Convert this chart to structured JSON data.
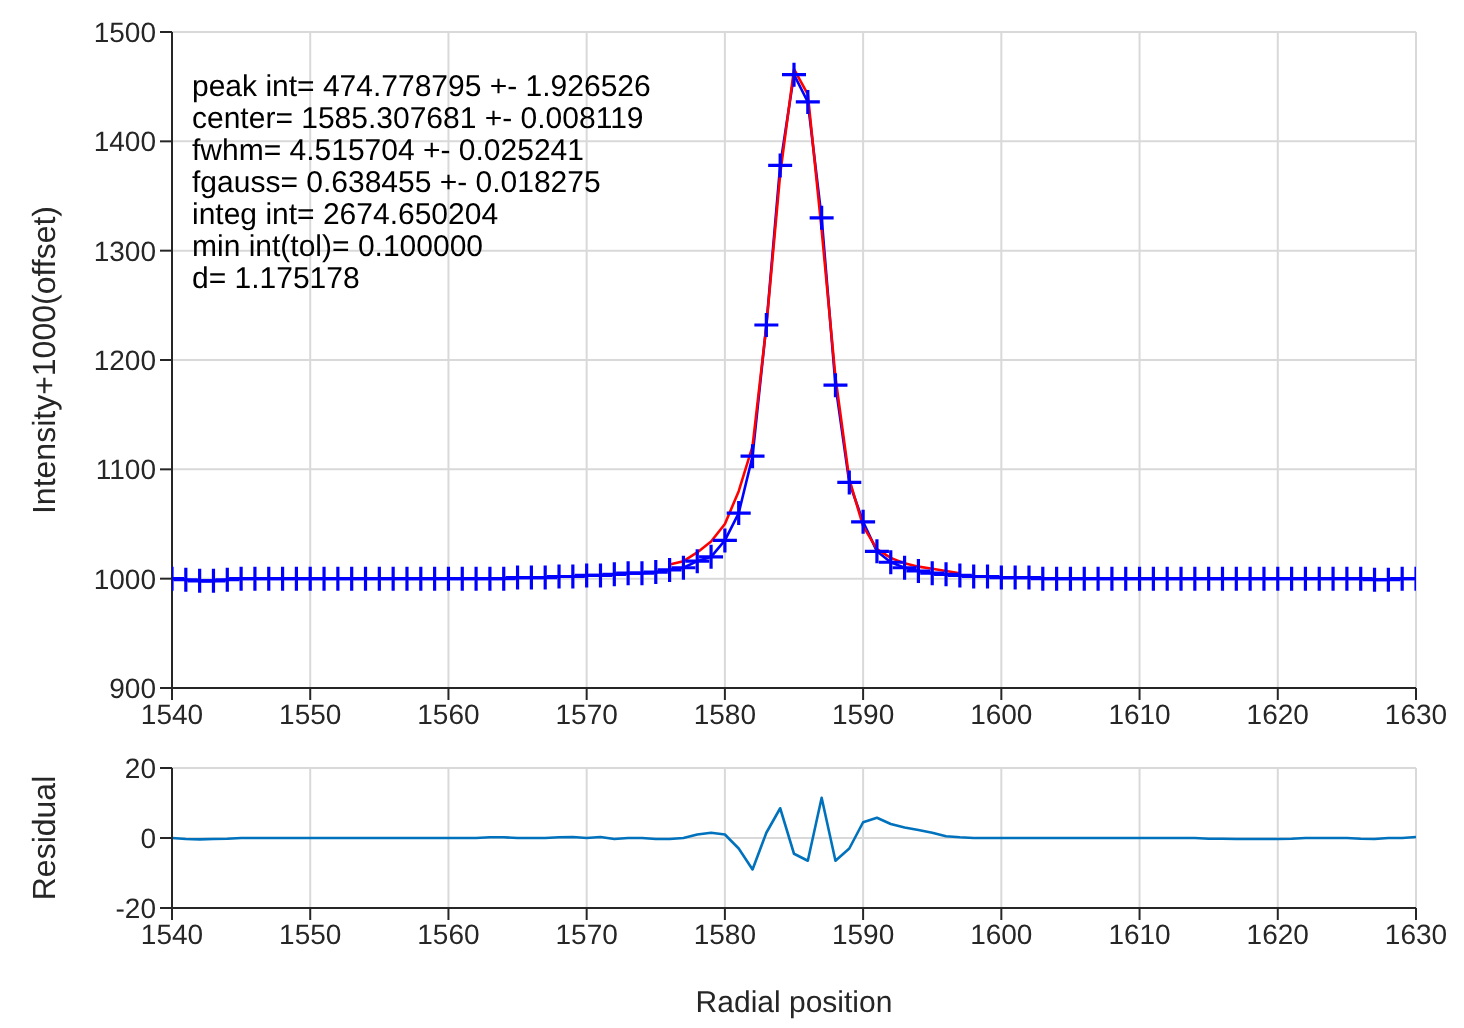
{
  "chart_data": [
    {
      "type": "line",
      "ylabel": "Intensity+1000(offset)",
      "xlim": [
        1540,
        1630
      ],
      "xticks": [
        1540,
        1550,
        1560,
        1570,
        1580,
        1590,
        1600,
        1610,
        1620,
        1630
      ],
      "ylim": [
        900,
        1500
      ],
      "yticks": [
        900,
        1000,
        1100,
        1200,
        1300,
        1400,
        1500
      ],
      "grid": true,
      "x": [
        1540,
        1541,
        1542,
        1543,
        1544,
        1545,
        1546,
        1547,
        1548,
        1549,
        1550,
        1551,
        1552,
        1553,
        1554,
        1555,
        1556,
        1557,
        1558,
        1559,
        1560,
        1561,
        1562,
        1563,
        1564,
        1565,
        1566,
        1567,
        1568,
        1569,
        1570,
        1571,
        1572,
        1573,
        1574,
        1575,
        1576,
        1577,
        1578,
        1579,
        1580,
        1581,
        1582,
        1583,
        1584,
        1585,
        1586,
        1587,
        1588,
        1589,
        1590,
        1591,
        1592,
        1593,
        1594,
        1595,
        1596,
        1597,
        1598,
        1599,
        1600,
        1601,
        1602,
        1603,
        1604,
        1605,
        1606,
        1607,
        1608,
        1609,
        1610,
        1611,
        1612,
        1613,
        1614,
        1615,
        1616,
        1617,
        1618,
        1619,
        1620,
        1621,
        1622,
        1623,
        1624,
        1625,
        1626,
        1627,
        1628,
        1629,
        1630
      ],
      "series": [
        {
          "color": "#0000ff",
          "marker": "cross",
          "values": [
            1000,
            999,
            998,
            998,
            999,
            1000,
            1000,
            1000,
            1000,
            1000,
            1000,
            1000,
            1000,
            1000,
            1000,
            1000,
            1000,
            1000,
            1000,
            1000,
            1000,
            1000,
            1000,
            1000,
            1000,
            1001,
            1001,
            1001,
            1002,
            1002,
            1003,
            1003,
            1004,
            1005,
            1005,
            1006,
            1008,
            1010,
            1016,
            1020,
            1035,
            1060,
            1112,
            1232,
            1378,
            1461,
            1436,
            1330,
            1177,
            1088,
            1052,
            1025,
            1015,
            1010,
            1007,
            1005,
            1004,
            1003,
            1002,
            1002,
            1001,
            1001,
            1001,
            1000,
            1000,
            1000,
            1000,
            1000,
            1000,
            1000,
            1000,
            1000,
            1000,
            1000,
            1000,
            1000,
            1000,
            1000,
            1000,
            1000,
            1000,
            1000,
            1000,
            1000,
            1000,
            1000,
            1000,
            999,
            999,
            1000,
            1000
          ]
        },
        {
          "color": "#ff0000",
          "marker": "none",
          "values": [
            null,
            null,
            null,
            null,
            null,
            null,
            null,
            null,
            null,
            null,
            null,
            null,
            null,
            null,
            null,
            null,
            null,
            null,
            null,
            null,
            null,
            null,
            null,
            null,
            null,
            null,
            null,
            null,
            null,
            null,
            null,
            null,
            null,
            null,
            null,
            null,
            1013,
            1016,
            1024,
            1034,
            1050,
            1080,
            1121,
            1231,
            1370,
            1466,
            1443,
            1319,
            1184,
            1091,
            1048,
            1027,
            1019,
            1014,
            1011,
            1009,
            1007,
            1005,
            null,
            null,
            null,
            null,
            null,
            null,
            null,
            null,
            null,
            null,
            null,
            null,
            null,
            null,
            null,
            null,
            null,
            null,
            null,
            null,
            null,
            null,
            null,
            null,
            null,
            null,
            null,
            null,
            null,
            null,
            null,
            null,
            null
          ]
        }
      ],
      "annotations": [
        "peak int= 474.778795 +- 1.926526",
        "center= 1585.307681 +- 0.008119",
        "fwhm= 4.515704 +- 0.025241",
        "fgauss= 0.638455 +- 0.018275",
        "integ int= 2674.650204",
        "min int(tol)= 0.100000",
        "d= 1.175178"
      ]
    },
    {
      "type": "line",
      "xlabel": "Radial position",
      "ylabel": "Residual",
      "xlim": [
        1540,
        1630
      ],
      "xticks": [
        1540,
        1550,
        1560,
        1570,
        1580,
        1590,
        1600,
        1610,
        1620,
        1630
      ],
      "ylim": [
        -20,
        20
      ],
      "yticks": [
        -20,
        0,
        20
      ],
      "grid": true,
      "x": [
        1540,
        1541,
        1542,
        1543,
        1544,
        1545,
        1546,
        1547,
        1548,
        1549,
        1550,
        1551,
        1552,
        1553,
        1554,
        1555,
        1556,
        1557,
        1558,
        1559,
        1560,
        1561,
        1562,
        1563,
        1564,
        1565,
        1566,
        1567,
        1568,
        1569,
        1570,
        1571,
        1572,
        1573,
        1574,
        1575,
        1576,
        1577,
        1578,
        1579,
        1580,
        1581,
        1582,
        1583,
        1584,
        1585,
        1586,
        1587,
        1588,
        1589,
        1590,
        1591,
        1592,
        1593,
        1594,
        1595,
        1596,
        1597,
        1598,
        1599,
        1600,
        1601,
        1602,
        1603,
        1604,
        1605,
        1606,
        1607,
        1608,
        1609,
        1610,
        1611,
        1612,
        1613,
        1614,
        1615,
        1616,
        1617,
        1618,
        1619,
        1620,
        1621,
        1622,
        1623,
        1624,
        1625,
        1626,
        1627,
        1628,
        1629,
        1630
      ],
      "series": [
        {
          "color": "#0072bd",
          "marker": "none",
          "values": [
            0,
            -0.3,
            -0.4,
            -0.3,
            -0.2,
            0,
            0,
            0,
            0,
            0,
            0,
            0,
            0,
            0,
            0,
            0,
            0,
            0,
            0,
            0,
            0,
            0,
            0,
            0.2,
            0.2,
            0,
            0,
            0,
            0.2,
            0.3,
            0,
            0.3,
            -0.3,
            0,
            0,
            -0.3,
            -0.3,
            0,
            1,
            1.5,
            1,
            -3,
            -9,
            1.5,
            8.5,
            -4.5,
            -6.5,
            11.5,
            -6.5,
            -3,
            4.5,
            5.8,
            4,
            3,
            2.3,
            1.5,
            0.5,
            0.2,
            0,
            0,
            0,
            0,
            0,
            0,
            0,
            0,
            0,
            0,
            0,
            0,
            0,
            0,
            0,
            0,
            0,
            -0.2,
            -0.2,
            -0.3,
            -0.3,
            -0.3,
            -0.3,
            -0.2,
            0,
            0,
            0,
            0,
            -0.2,
            -0.3,
            0,
            0,
            0.3
          ]
        }
      ]
    }
  ]
}
